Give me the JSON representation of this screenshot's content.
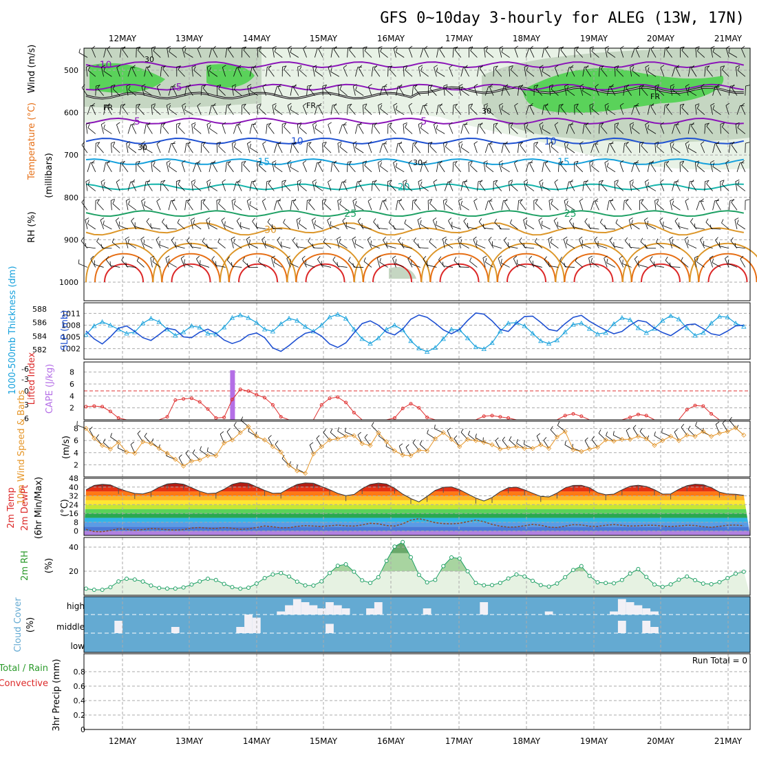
{
  "title": "GFS 0~10day 3-hourly for ALEG (13W, 17N)",
  "dates": [
    "12MAY",
    "13MAY",
    "14MAY",
    "15MAY",
    "16MAY",
    "17MAY",
    "18MAY",
    "19MAY",
    "20MAY",
    "21MAY"
  ],
  "colors": {
    "purple": "#8a14b8",
    "blue": "#1e50d2",
    "sky": "#14a0dc",
    "teal": "#14b4aa",
    "green": "#1ea064",
    "orange": "#dc9628",
    "dorange": "#e66e14",
    "red": "#dc2828",
    "rhgreen": "#5ad25a",
    "cloud": "#64aad2",
    "lifted": "#e03030",
    "cape": "#b46ee6",
    "wind": "#e69628"
  },
  "chart_data": [
    {
      "type": "contour",
      "id": "upper-air",
      "ylabel_parts": [
        "RH (%)",
        "Temperature (°C)",
        "Wind (m/s)",
        "(millibars)"
      ],
      "yticks": [
        500,
        600,
        700,
        800,
        900,
        1000
      ],
      "ylim": [
        450,
        1025
      ],
      "fr_label": "FR",
      "rh_label": "30",
      "isotherms": [
        {
          "label": "-10",
          "base": 487,
          "color": "purple",
          "labels_at": [
            0.03
          ]
        },
        {
          "label": "-5",
          "base": 540,
          "color": "purple",
          "labels_at": [
            0.14
          ]
        },
        {
          "label": "5",
          "base": 620,
          "color": "purple",
          "labels_at": [
            0.08,
            0.51
          ]
        },
        {
          "label": "10",
          "base": 667,
          "color": "blue",
          "labels_at": [
            0.32,
            0.7
          ]
        },
        {
          "label": "15",
          "base": 716,
          "color": "sky",
          "labels_at": [
            0.27,
            0.72
          ]
        },
        {
          "label": "20",
          "base": 775,
          "color": "teal",
          "labels_at": [
            0.48
          ]
        },
        {
          "label": "25",
          "base": 838,
          "color": "green",
          "labels_at": [
            0.4,
            0.73
          ]
        },
        {
          "label": "30",
          "base": 876,
          "color": "orange",
          "labels_at": [
            0.28
          ]
        }
      ]
    },
    {
      "type": "line",
      "id": "thickness-slp",
      "ylabel_left": "1000-500mb Thickness (dm)",
      "ylabel_right": "SLP (mb)",
      "left_ticks": [
        582,
        584,
        586,
        588
      ],
      "left_lim": [
        581,
        588.5
      ],
      "right_ticks": [
        1002,
        1005,
        1008,
        1011
      ],
      "right_lim": [
        1000,
        1013
      ],
      "series": [
        {
          "name": "thickness",
          "color": "sky",
          "values": [
            584.2,
            585.5,
            586.1,
            585.6,
            585.0,
            584.4,
            584.6,
            585.9,
            586.6,
            586.1,
            585.0,
            584.1,
            584.6,
            585.5,
            585.3,
            584.4,
            584.3,
            585.3,
            586.7,
            587.1,
            586.7,
            586.0,
            585.0,
            584.7,
            585.8,
            586.6,
            586.3,
            585.4,
            584.7,
            585.6,
            586.8,
            587.2,
            586.6,
            585.0,
            583.6,
            582.9,
            583.7,
            585.0,
            585.6,
            584.9,
            583.3,
            582.2,
            581.7,
            582.3,
            583.6,
            585.0,
            584.9,
            583.7,
            582.4,
            582.1,
            583.0,
            584.7,
            585.9,
            586.0,
            585.5,
            584.4,
            583.3,
            582.9,
            583.4,
            584.6,
            585.7,
            585.9,
            585.1,
            584.3,
            584.5,
            585.8,
            586.7,
            586.4,
            585.2,
            584.5,
            585.1,
            586.3,
            587.0,
            586.5,
            585.2,
            584.1,
            584.5,
            585.9,
            586.9,
            586.8,
            585.9,
            585.4
          ]
        },
        {
          "name": "slp",
          "color": "blue",
          "values": [
            1006.5,
            1004.5,
            1003.2,
            1005.0,
            1007.2,
            1007.8,
            1006.4,
            1004.8,
            1004.1,
            1005.6,
            1007.2,
            1006.8,
            1005.0,
            1004.8,
            1006.2,
            1007.0,
            1005.9,
            1004.2,
            1003.3,
            1004.0,
            1005.5,
            1006.0,
            1004.8,
            1002.2,
            1001.3,
            1002.8,
            1004.5,
            1005.9,
            1006.4,
            1005.2,
            1003.2,
            1002.3,
            1003.5,
            1006.0,
            1008.4,
            1009.1,
            1008.0,
            1006.2,
            1005.5,
            1007.0,
            1009.5,
            1010.6,
            1010.0,
            1008.5,
            1006.8,
            1005.8,
            1006.9,
            1009.2,
            1011.1,
            1010.8,
            1009.1,
            1006.9,
            1006.4,
            1008.5,
            1010.2,
            1010.3,
            1008.7,
            1006.9,
            1006.5,
            1008.4,
            1010.0,
            1010.5,
            1009.0,
            1007.8,
            1006.7,
            1005.8,
            1006.4,
            1008.0,
            1009.2,
            1008.8,
            1007.2,
            1006.1,
            1005.3,
            1006.7,
            1008.1,
            1008.3,
            1007.1,
            1005.8,
            1005.4,
            1006.5,
            1007.8,
            1008.0
          ]
        }
      ]
    },
    {
      "type": "line",
      "id": "lifted-cape",
      "ylabel_left": "Lifted Index",
      "ylabel_right": "CAPE (J/kg)",
      "left_ticks": [
        "-6",
        "-3",
        "0",
        "3",
        "6"
      ],
      "right_ticks": [
        2,
        4,
        6,
        8
      ],
      "right_lim": [
        0,
        9
      ],
      "lifted_zero_value": 0,
      "cape_bar": {
        "x_index": 18,
        "value": 8.3
      },
      "series": [
        {
          "name": "cape",
          "color": "lifted",
          "values": [
            2.2,
            2.3,
            2.2,
            1.4,
            0.3,
            0.0,
            0.0,
            0.0,
            0.0,
            0.0,
            0.5,
            3.3,
            3.5,
            3.6,
            3.0,
            1.8,
            0.3,
            0.4,
            3.4,
            5.1,
            4.8,
            4.2,
            3.7,
            2.5,
            0.5,
            0.0,
            0.0,
            0.0,
            0.0,
            2.5,
            3.6,
            3.8,
            2.9,
            1.2,
            0.0,
            0.0,
            0.0,
            0.0,
            0.3,
            1.9,
            2.7,
            2.0,
            0.4,
            0.0,
            0.0,
            0.0,
            0.0,
            0.0,
            0.0,
            0.6,
            0.7,
            0.5,
            0.3,
            0.0,
            0.0,
            0.0,
            0.0,
            0.0,
            0.0,
            0.7,
            1.0,
            0.6,
            0.0,
            0.0,
            0.0,
            0.0,
            0.0,
            0.4,
            0.9,
            0.7,
            0.0,
            0.0,
            0.0,
            0.0,
            1.7,
            2.4,
            2.3,
            1.0,
            0.0,
            0.0,
            0.0,
            0.0
          ]
        }
      ]
    },
    {
      "type": "line",
      "id": "wind-10m",
      "ylabel": "10m Wind Speed & Barbs",
      "unit": "(m/s)",
      "yticks": [
        2,
        4,
        6,
        8
      ],
      "ylim": [
        0,
        9.2
      ],
      "series": [
        {
          "name": "speed",
          "color": "wind",
          "values": [
            8.0,
            6.4,
            5.2,
            4.6,
            5.7,
            4.1,
            3.9,
            5.8,
            5.5,
            4.7,
            3.9,
            2.9,
            1.8,
            2.6,
            2.8,
            3.5,
            3.5,
            5.6,
            6.1,
            7.3,
            8.3,
            6.7,
            6.1,
            5.0,
            4.1,
            1.9,
            1.0,
            0.6,
            3.8,
            5.0,
            6.1,
            6.3,
            6.7,
            6.8,
            5.5,
            5.2,
            7.3,
            5.8,
            4.3,
            3.6,
            3.5,
            4.4,
            4.3,
            6.3,
            7.3,
            6.2,
            5.0,
            6.2,
            6.0,
            5.7,
            5.3,
            4.6,
            4.8,
            5.0,
            4.7,
            4.7,
            5.3,
            4.7,
            6.6,
            7.5,
            4.5,
            4.2,
            4.6,
            4.9,
            6.1,
            5.9,
            6.2,
            6.2,
            6.7,
            6.3,
            5.2,
            6.0,
            6.7,
            6.0,
            6.9,
            6.7,
            7.5,
            6.7,
            7.2,
            7.5,
            8.1,
            6.9
          ]
        }
      ]
    },
    {
      "type": "area",
      "id": "temperature",
      "ylabel_parts": [
        "2m Temp",
        "2m DewPt",
        "(6hr Min/Max)"
      ],
      "unit": "(°C)",
      "yticks": [
        0,
        8,
        16,
        24,
        32,
        40,
        48
      ],
      "ylim": [
        -4,
        48
      ],
      "series": [
        {
          "name": "temp",
          "values": [
            37.5,
            41.5,
            42.5,
            42.0,
            38.8,
            36.2,
            34.2,
            33.8,
            35.8,
            39.8,
            42.8,
            43.5,
            42.6,
            39.4,
            36.2,
            34.0,
            34.5,
            38.0,
            42.5,
            44.2,
            43.5,
            40.2,
            37.0,
            34.3,
            34.6,
            38.8,
            42.5,
            43.8,
            43.5,
            40.6,
            37.6,
            34.2,
            32.2,
            33.3,
            38.6,
            42.5,
            43.6,
            42.8,
            39.0,
            33.6,
            29.5,
            26.5,
            31.5,
            37.0,
            39.8,
            40.2,
            37.6,
            33.8,
            30.0,
            27.3,
            30.5,
            35.8,
            39.4,
            39.9,
            37.5,
            34.4,
            31.5,
            31.0,
            34.6,
            39.3,
            41.5,
            41.6,
            39.5,
            35.0,
            33.0,
            33.6,
            37.5,
            40.8,
            41.7,
            40.6,
            37.6,
            33.6,
            33.8,
            38.0,
            41.3,
            42.6,
            42.2,
            39.5,
            35.4,
            33.7,
            33.4,
            32.5
          ]
        },
        {
          "name": "dewpt",
          "values": [
            1.5,
            -0.5,
            -0.7,
            0.6,
            2.0,
            1.6,
            0.7,
            1.3,
            2.2,
            1.9,
            1.2,
            0.8,
            1.3,
            2.7,
            3.2,
            2.5,
            2.3,
            3.1,
            2.5,
            1.6,
            2.0,
            3.2,
            4.6,
            3.9,
            2.9,
            3.0,
            4.3,
            4.9,
            4.5,
            4.2,
            4.8,
            5.4,
            4.7,
            4.5,
            5.5,
            7.0,
            6.5,
            5.0,
            4.5,
            6.5,
            10.0,
            11.2,
            9.6,
            7.6,
            6.7,
            6.5,
            7.0,
            8.5,
            10.0,
            8.5,
            6.0,
            4.4,
            3.5,
            3.7,
            4.8,
            6.0,
            5.3,
            3.6,
            3.2,
            4.5,
            5.8,
            5.5,
            4.4,
            4.3,
            5.3,
            5.9,
            5.2,
            4.5,
            4.8,
            5.3,
            5.3,
            4.5,
            4.1,
            4.6,
            5.3,
            5.0,
            3.9,
            3.4,
            4.3,
            5.3,
            5.4,
            4.9
          ]
        }
      ]
    },
    {
      "type": "area",
      "id": "rh-2m",
      "ylabel": "2m RH",
      "unit": "(%)",
      "yticks": [
        20,
        40
      ],
      "ylim": [
        0,
        48
      ],
      "series": [
        {
          "name": "rh",
          "color": "green",
          "values": [
            5.5,
            4.6,
            4.6,
            6.7,
            11.5,
            13.7,
            13.1,
            11.4,
            8.1,
            6.1,
            5.6,
            5.6,
            6.5,
            8.9,
            11.5,
            13.7,
            12.7,
            9.4,
            6.8,
            5.5,
            6.3,
            9.7,
            14.3,
            17.3,
            18.4,
            15.6,
            11.3,
            8.2,
            8.1,
            11.6,
            18.5,
            24.5,
            25.7,
            19.6,
            12.4,
            10.3,
            15.0,
            28.6,
            40.4,
            44.2,
            31.6,
            16.9,
            10.7,
            12.8,
            24.2,
            31.4,
            30.5,
            19.9,
            10.2,
            8.3,
            8.4,
            10.3,
            13.9,
            17.3,
            15.6,
            12.0,
            8.4,
            7.2,
            9.8,
            15.0,
            21.0,
            24.2,
            16.1,
            10.8,
            10.2,
            10.0,
            12.7,
            18.0,
            21.8,
            15.2,
            8.9,
            7.0,
            9.1,
            12.9,
            15.6,
            12.6,
            9.7,
            9.2,
            10.9,
            14.3,
            17.9,
            19.6
          ]
        }
      ]
    },
    {
      "type": "heatmap",
      "id": "cloud-cover",
      "ylabel": "Cloud Cover",
      "unit": "(%)",
      "levels": [
        "high",
        "middle",
        "low"
      ],
      "high": [
        0,
        0,
        0,
        0,
        0,
        0,
        0,
        0,
        0,
        0,
        0,
        0,
        0,
        0,
        0,
        0,
        0,
        0,
        0,
        0,
        0,
        0,
        0,
        0,
        1,
        3,
        5,
        4,
        3,
        2,
        4,
        3,
        2,
        0,
        0,
        2,
        4,
        0,
        0,
        0,
        0,
        0,
        2,
        0,
        0,
        0,
        0,
        0,
        0,
        4,
        0,
        0,
        0,
        0,
        0,
        0,
        0,
        1,
        0,
        0,
        0,
        0,
        0,
        0,
        0,
        1,
        5,
        4,
        3,
        2,
        1,
        0,
        0,
        0,
        0,
        0,
        0,
        0,
        0,
        0,
        0,
        0
      ],
      "middle": [
        0,
        0,
        0,
        0,
        4,
        0,
        0,
        0,
        0,
        0,
        0,
        2,
        0,
        0,
        0,
        0,
        0,
        0,
        0,
        2,
        6,
        5,
        0,
        0,
        0,
        0,
        0,
        0,
        0,
        0,
        3,
        0,
        0,
        0,
        0,
        0,
        0,
        0,
        0,
        0,
        0,
        0,
        0,
        0,
        0,
        0,
        0,
        0,
        0,
        0,
        0,
        0,
        0,
        0,
        0,
        0,
        0,
        0,
        0,
        0,
        0,
        0,
        0,
        0,
        0,
        0,
        4,
        0,
        0,
        4,
        2,
        0,
        0,
        0,
        0,
        0,
        0,
        0,
        0,
        0,
        0,
        0
      ]
    },
    {
      "type": "bar",
      "id": "precip",
      "ylabel_parts": [
        "Total / Rain",
        "Convective",
        "3hr Precip (mm)"
      ],
      "yticks": [
        "0",
        "0.2",
        "0.4",
        "0.6",
        "0.8"
      ],
      "ylim": [
        0,
        1.0
      ],
      "values": [],
      "run_total": "Run Total = 0"
    }
  ]
}
